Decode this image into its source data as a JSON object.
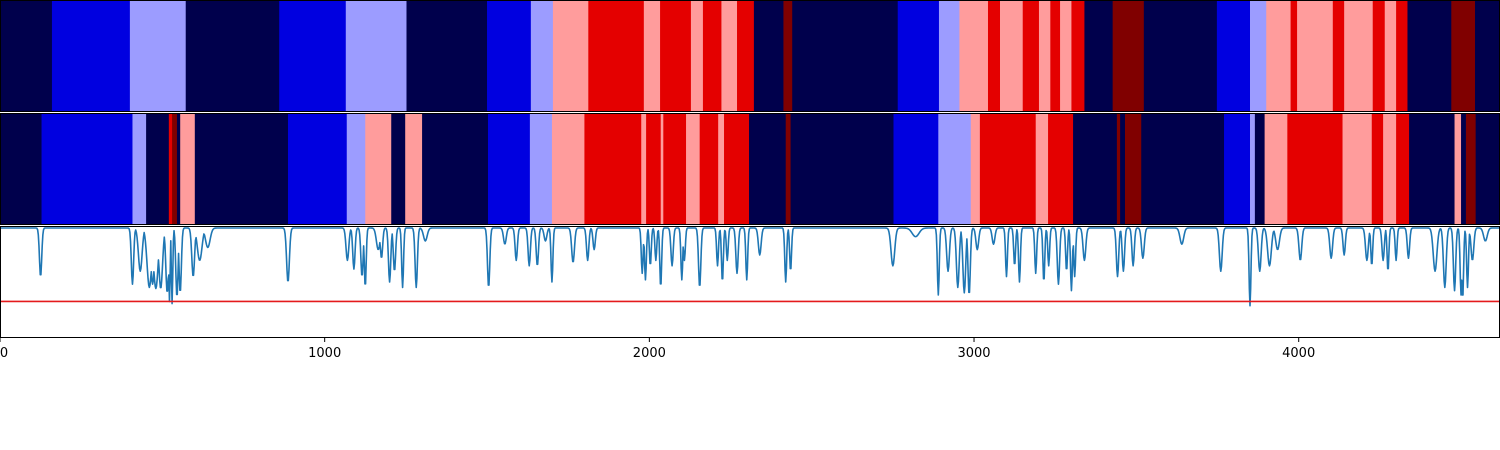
{
  "chart_data": {
    "type": "heatmap",
    "title": "",
    "xlabel": "",
    "ylabel": "",
    "xlim": [
      0,
      4620
    ],
    "x_ticks": [
      0,
      1000,
      2000,
      3000,
      4000
    ],
    "x_tick_labels": [
      "0",
      "1000",
      "2000",
      "3000",
      "4000"
    ],
    "legend": "none",
    "grid": false,
    "colors": {
      "dark_navy": "#00004c",
      "blue": "#0000e0",
      "light_blue": "#9c9cff",
      "light_red": "#ff9c9c",
      "red": "#e40000",
      "dark_red": "#800000",
      "line": "#1f77b4",
      "threshold": "#e41a1c"
    },
    "state_tracks": [
      {
        "segments": [
          [
            0,
            160,
            "dark_navy"
          ],
          [
            160,
            400,
            "blue"
          ],
          [
            400,
            572,
            "light_blue"
          ],
          [
            572,
            860,
            "dark_navy"
          ],
          [
            860,
            1065,
            "blue"
          ],
          [
            1065,
            1252,
            "light_blue"
          ],
          [
            1252,
            1500,
            "dark_navy"
          ],
          [
            1500,
            1635,
            "blue"
          ],
          [
            1635,
            1703,
            "light_blue"
          ],
          [
            1703,
            1812,
            "light_red"
          ],
          [
            1812,
            1983,
            "red"
          ],
          [
            1983,
            2033,
            "light_red"
          ],
          [
            2033,
            2128,
            "red"
          ],
          [
            2128,
            2165,
            "light_red"
          ],
          [
            2165,
            2222,
            "red"
          ],
          [
            2222,
            2270,
            "light_red"
          ],
          [
            2270,
            2322,
            "red"
          ],
          [
            2322,
            2413,
            "dark_navy"
          ],
          [
            2413,
            2440,
            "dark_red"
          ],
          [
            2440,
            2765,
            "dark_navy"
          ],
          [
            2765,
            2892,
            "blue"
          ],
          [
            2892,
            2955,
            "light_blue"
          ],
          [
            2955,
            3043,
            "light_red"
          ],
          [
            3043,
            3080,
            "red"
          ],
          [
            3080,
            3150,
            "light_red"
          ],
          [
            3150,
            3200,
            "red"
          ],
          [
            3200,
            3235,
            "light_red"
          ],
          [
            3235,
            3265,
            "red"
          ],
          [
            3265,
            3300,
            "light_red"
          ],
          [
            3300,
            3340,
            "red"
          ],
          [
            3340,
            3427,
            "dark_navy"
          ],
          [
            3427,
            3523,
            "dark_red"
          ],
          [
            3523,
            3748,
            "dark_navy"
          ],
          [
            3748,
            3850,
            "blue"
          ],
          [
            3850,
            3900,
            "light_blue"
          ],
          [
            3900,
            3975,
            "light_red"
          ],
          [
            3975,
            3995,
            "red"
          ],
          [
            3995,
            4105,
            "light_red"
          ],
          [
            4105,
            4140,
            "red"
          ],
          [
            4140,
            4228,
            "light_red"
          ],
          [
            4228,
            4265,
            "red"
          ],
          [
            4265,
            4300,
            "light_red"
          ],
          [
            4300,
            4335,
            "red"
          ],
          [
            4335,
            4470,
            "dark_navy"
          ],
          [
            4470,
            4543,
            "dark_red"
          ],
          [
            4543,
            4620,
            "dark_navy"
          ]
        ]
      },
      {
        "segments": [
          [
            0,
            128,
            "dark_navy"
          ],
          [
            128,
            408,
            "blue"
          ],
          [
            408,
            450,
            "light_blue"
          ],
          [
            450,
            520,
            "dark_navy"
          ],
          [
            520,
            530,
            "red"
          ],
          [
            530,
            545,
            "dark_red"
          ],
          [
            545,
            555,
            "dark_navy"
          ],
          [
            555,
            600,
            "light_red"
          ],
          [
            600,
            887,
            "dark_navy"
          ],
          [
            887,
            1068,
            "blue"
          ],
          [
            1068,
            1125,
            "light_blue"
          ],
          [
            1125,
            1205,
            "light_red"
          ],
          [
            1205,
            1248,
            "dark_navy"
          ],
          [
            1248,
            1300,
            "light_red"
          ],
          [
            1300,
            1503,
            "dark_navy"
          ],
          [
            1503,
            1632,
            "blue"
          ],
          [
            1632,
            1700,
            "light_blue"
          ],
          [
            1700,
            1800,
            "light_red"
          ],
          [
            1800,
            1975,
            "red"
          ],
          [
            1975,
            1990,
            "light_red"
          ],
          [
            1990,
            2035,
            "red"
          ],
          [
            2035,
            2043,
            "light_red"
          ],
          [
            2043,
            2113,
            "red"
          ],
          [
            2113,
            2155,
            "light_red"
          ],
          [
            2155,
            2212,
            "red"
          ],
          [
            2212,
            2230,
            "light_red"
          ],
          [
            2230,
            2307,
            "red"
          ],
          [
            2307,
            2420,
            "dark_navy"
          ],
          [
            2420,
            2435,
            "dark_red"
          ],
          [
            2435,
            2752,
            "dark_navy"
          ],
          [
            2752,
            2890,
            "blue"
          ],
          [
            2890,
            2990,
            "light_blue"
          ],
          [
            2990,
            3018,
            "light_red"
          ],
          [
            3018,
            3190,
            "red"
          ],
          [
            3190,
            3228,
            "light_red"
          ],
          [
            3228,
            3305,
            "red"
          ],
          [
            3305,
            3440,
            "dark_navy"
          ],
          [
            3440,
            3450,
            "dark_red"
          ],
          [
            3450,
            3465,
            "dark_navy"
          ],
          [
            3465,
            3515,
            "dark_red"
          ],
          [
            3515,
            3770,
            "dark_navy"
          ],
          [
            3770,
            3850,
            "blue"
          ],
          [
            3850,
            3865,
            "light_blue"
          ],
          [
            3865,
            3895,
            "dark_navy"
          ],
          [
            3895,
            3965,
            "light_red"
          ],
          [
            3965,
            4135,
            "red"
          ],
          [
            4135,
            4225,
            "light_red"
          ],
          [
            4225,
            4260,
            "red"
          ],
          [
            4260,
            4300,
            "light_red"
          ],
          [
            4300,
            4340,
            "red"
          ],
          [
            4340,
            4480,
            "dark_navy"
          ],
          [
            4480,
            4500,
            "light_red"
          ],
          [
            4500,
            4515,
            "dark_navy"
          ],
          [
            4515,
            4545,
            "dark_red"
          ],
          [
            4545,
            4620,
            "dark_navy"
          ]
        ]
      }
    ],
    "series": [
      {
        "threshold": 0.68,
        "baseline": 0,
        "ylim": [
          0,
          1
        ],
        "dips": [
          [
            125,
            0.45,
            5
          ],
          [
            408,
            0.52,
            5
          ],
          [
            432,
            0.4,
            8
          ],
          [
            460,
            0.55,
            10
          ],
          [
            470,
            0.52,
            8
          ],
          [
            480,
            0.56,
            10
          ],
          [
            495,
            0.56,
            8
          ],
          [
            515,
            0.6,
            6
          ],
          [
            522,
            0.68,
            3
          ],
          [
            530,
            0.7,
            3
          ],
          [
            545,
            0.64,
            5
          ],
          [
            555,
            0.6,
            5
          ],
          [
            595,
            0.45,
            6
          ],
          [
            615,
            0.3,
            10
          ],
          [
            640,
            0.18,
            10
          ],
          [
            887,
            0.5,
            6
          ],
          [
            1070,
            0.3,
            6
          ],
          [
            1090,
            0.38,
            5
          ],
          [
            1115,
            0.45,
            5
          ],
          [
            1125,
            0.55,
            4
          ],
          [
            1165,
            0.2,
            8
          ],
          [
            1175,
            0.28,
            5
          ],
          [
            1200,
            0.5,
            5
          ],
          [
            1215,
            0.4,
            5
          ],
          [
            1240,
            0.55,
            4
          ],
          [
            1282,
            0.55,
            5
          ],
          [
            1310,
            0.12,
            8
          ],
          [
            1505,
            0.55,
            5
          ],
          [
            1555,
            0.15,
            6
          ],
          [
            1590,
            0.3,
            5
          ],
          [
            1630,
            0.35,
            5
          ],
          [
            1655,
            0.35,
            5
          ],
          [
            1680,
            0.12,
            6
          ],
          [
            1700,
            0.5,
            4
          ],
          [
            1765,
            0.32,
            6
          ],
          [
            1810,
            0.3,
            5
          ],
          [
            1830,
            0.2,
            5
          ],
          [
            1978,
            0.42,
            4
          ],
          [
            1988,
            0.48,
            4
          ],
          [
            2003,
            0.35,
            4
          ],
          [
            2020,
            0.3,
            4
          ],
          [
            2035,
            0.55,
            4
          ],
          [
            2070,
            0.35,
            5
          ],
          [
            2100,
            0.48,
            4
          ],
          [
            2108,
            0.3,
            4
          ],
          [
            2155,
            0.55,
            5
          ],
          [
            2210,
            0.35,
            4
          ],
          [
            2225,
            0.5,
            4
          ],
          [
            2240,
            0.3,
            4
          ],
          [
            2270,
            0.42,
            5
          ],
          [
            2300,
            0.48,
            4
          ],
          [
            2340,
            0.25,
            6
          ],
          [
            2420,
            0.5,
            4
          ],
          [
            2435,
            0.4,
            4
          ],
          [
            2750,
            0.35,
            8
          ],
          [
            2820,
            0.08,
            15
          ],
          [
            2890,
            0.62,
            4
          ],
          [
            2920,
            0.4,
            6
          ],
          [
            2950,
            0.55,
            6
          ],
          [
            2970,
            0.6,
            6
          ],
          [
            2985,
            0.62,
            5
          ],
          [
            3010,
            0.2,
            6
          ],
          [
            3060,
            0.15,
            6
          ],
          [
            3100,
            0.45,
            4
          ],
          [
            3125,
            0.35,
            4
          ],
          [
            3140,
            0.5,
            4
          ],
          [
            3190,
            0.42,
            4
          ],
          [
            3215,
            0.5,
            4
          ],
          [
            3230,
            0.35,
            4
          ],
          [
            3260,
            0.52,
            5
          ],
          [
            3285,
            0.4,
            4
          ],
          [
            3300,
            0.58,
            4
          ],
          [
            3310,
            0.45,
            4
          ],
          [
            3340,
            0.3,
            6
          ],
          [
            3442,
            0.45,
            5
          ],
          [
            3460,
            0.4,
            5
          ],
          [
            3490,
            0.35,
            5
          ],
          [
            3520,
            0.28,
            6
          ],
          [
            3640,
            0.15,
            8
          ],
          [
            3760,
            0.4,
            6
          ],
          [
            3850,
            0.72,
            4
          ],
          [
            3880,
            0.4,
            6
          ],
          [
            3910,
            0.35,
            8
          ],
          [
            3935,
            0.2,
            8
          ],
          [
            4005,
            0.3,
            6
          ],
          [
            4100,
            0.28,
            6
          ],
          [
            4140,
            0.25,
            5
          ],
          [
            4210,
            0.3,
            6
          ],
          [
            4225,
            0.35,
            4
          ],
          [
            4260,
            0.3,
            5
          ],
          [
            4275,
            0.4,
            4
          ],
          [
            4300,
            0.3,
            4
          ],
          [
            4338,
            0.28,
            5
          ],
          [
            4420,
            0.4,
            8
          ],
          [
            4450,
            0.55,
            6
          ],
          [
            4480,
            0.58,
            5
          ],
          [
            4500,
            0.62,
            4
          ],
          [
            4505,
            0.66,
            4
          ],
          [
            4520,
            0.55,
            4
          ],
          [
            4535,
            0.3,
            6
          ],
          [
            4575,
            0.12,
            8
          ]
        ]
      }
    ]
  }
}
